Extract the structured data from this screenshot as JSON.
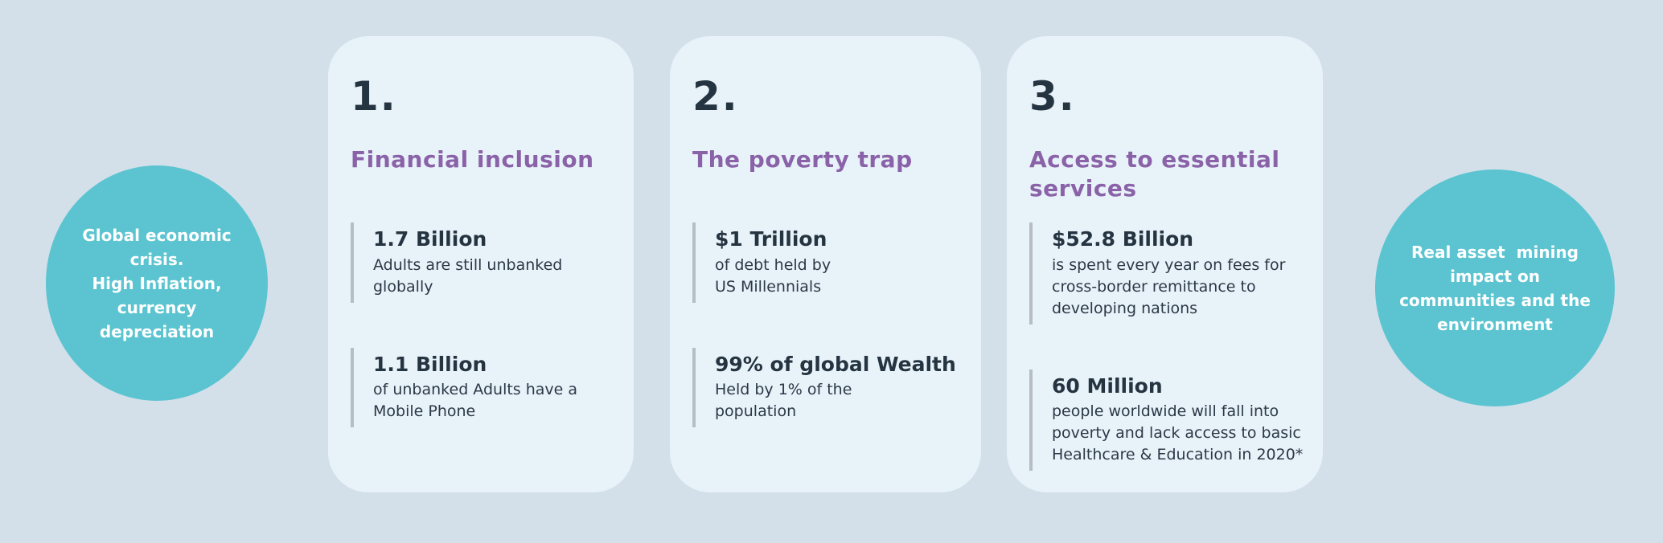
{
  "page": {
    "background_color": "#d3e0ea",
    "card_color": "#e8f2f9",
    "bubble_color": "#5bc4d0",
    "heading_color": "#8a62a8",
    "text_color": "#253441",
    "bar_color": "#b6bdc4"
  },
  "left_bubble": {
    "text": "Global economic\ncrisis.\nHigh Inflation,\ncurrency\ndepreciation"
  },
  "right_bubble": {
    "text": "Real asset  mining\nimpact on\ncommunities and the\nenvironment"
  },
  "cards": [
    {
      "number": "1.",
      "title": "Financial inclusion",
      "stats": [
        {
          "value": "1.7 Billion",
          "description": "Adults are still unbanked\nglobally"
        },
        {
          "value": "1.1 Billion",
          "description": "of unbanked Adults have a\nMobile Phone"
        }
      ]
    },
    {
      "number": "2.",
      "title": "The poverty trap",
      "stats": [
        {
          "value": "$1 Trillion",
          "description": "of debt held by\nUS Millennials"
        },
        {
          "value": "99% of global Wealth",
          "description": "Held by 1% of the\npopulation"
        }
      ]
    },
    {
      "number": "3.",
      "title": "Access to essential\nservices",
      "stats": [
        {
          "value": "$52.8 Billion",
          "description": "is spent every year on fees for\ncross-border remittance to\ndeveloping nations"
        },
        {
          "value": "60 Million",
          "description": "people worldwide will fall into\npoverty and lack access to basic\nHealthcare & Education in 2020*"
        }
      ]
    }
  ]
}
